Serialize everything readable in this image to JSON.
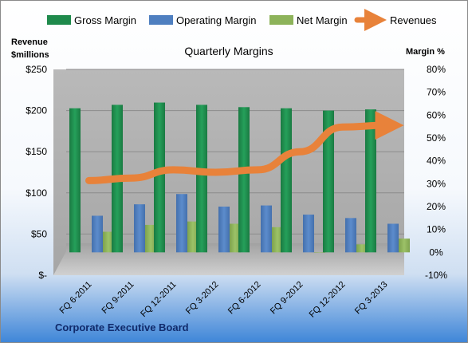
{
  "footer": {
    "company": "Corporate Executive Board"
  },
  "colors": {
    "gross": "#1f8a4c",
    "operating": "#4f7fc0",
    "net": "#8db35a",
    "revenues": "#e8823a"
  },
  "chart_data": {
    "type": "bar",
    "title": "Quarterly Margins",
    "categories": [
      "FQ 6-2011",
      "FQ 9-2011",
      "FQ 12-2011",
      "FQ 3-2012",
      "FQ 6-2012",
      "FQ 9-2012",
      "FQ 12-2012",
      "FQ 3-2013"
    ],
    "left_axis": {
      "label_line1": "Revenue",
      "label_line2": "$millions",
      "ticks": [
        0,
        50,
        100,
        150,
        200,
        250
      ],
      "tick_labels": [
        "$-",
        "$50",
        "$100",
        "$150",
        "$200",
        "$250"
      ],
      "ylim": [
        0,
        250
      ]
    },
    "right_axis": {
      "label": "Margin %",
      "ticks": [
        -10,
        0,
        10,
        20,
        30,
        40,
        50,
        60,
        70,
        80
      ],
      "tick_labels": [
        "-10%",
        "0%",
        "10%",
        "20%",
        "30%",
        "40%",
        "50%",
        "60%",
        "70%",
        "80%"
      ],
      "ylim": [
        -10,
        80
      ]
    },
    "legend_position": "top",
    "series": [
      {
        "name": "Gross Margin",
        "axis": "right",
        "kind": "bar",
        "values": [
          63,
          64.5,
          65.5,
          64.5,
          63.5,
          63,
          62,
          62.5
        ]
      },
      {
        "name": "Operating Margin",
        "axis": "right",
        "kind": "bar",
        "values": [
          16,
          21,
          25.5,
          20,
          20.5,
          16.5,
          15,
          12.5
        ]
      },
      {
        "name": "Net Margin",
        "axis": "right",
        "kind": "bar",
        "values": [
          9,
          12,
          13.5,
          12.5,
          11,
          0,
          3.5,
          6
        ]
      },
      {
        "name": "Revenues",
        "axis": "left",
        "kind": "line",
        "values": [
          115,
          118,
          128,
          125,
          128,
          150,
          180,
          182
        ]
      }
    ]
  }
}
